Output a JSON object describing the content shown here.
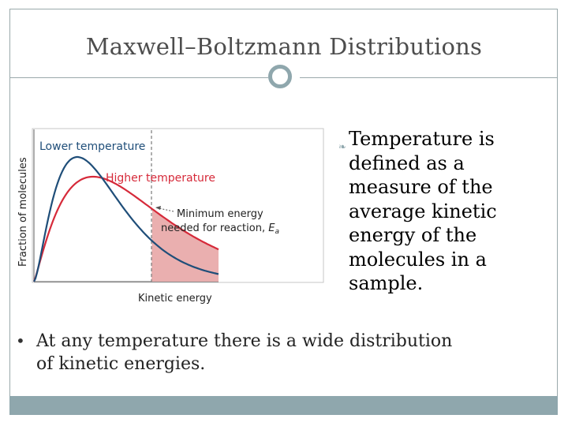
{
  "slide": {
    "title": "Maxwell–Boltzmann Distributions",
    "bullet_right": "Temperature is defined as a measure of the average kinetic energy of the molecules in a sample.",
    "bullet_bottom": "At any temperature there is a wide distribution of kinetic energies."
  },
  "figure": {
    "y_label": "Fraction of molecules",
    "x_label": "Kinetic energy",
    "lower_temp_label": "Lower temperature",
    "higher_temp_label": "Higher temperature",
    "min_energy_line1": "Minimum energy",
    "min_energy_line2": "needed for reaction, ",
    "min_energy_symbol": "E",
    "min_energy_subscript": "a"
  },
  "colors": {
    "lower_temperature": "#1f4e79",
    "higher_temperature": "#d62a3a",
    "shaded_region": "#e8a6a6",
    "accent": "#8fa7ad"
  },
  "icons": {
    "bullet_right": "leaf-bullet-icon",
    "title_ornament": "ring-ornament-icon"
  }
}
